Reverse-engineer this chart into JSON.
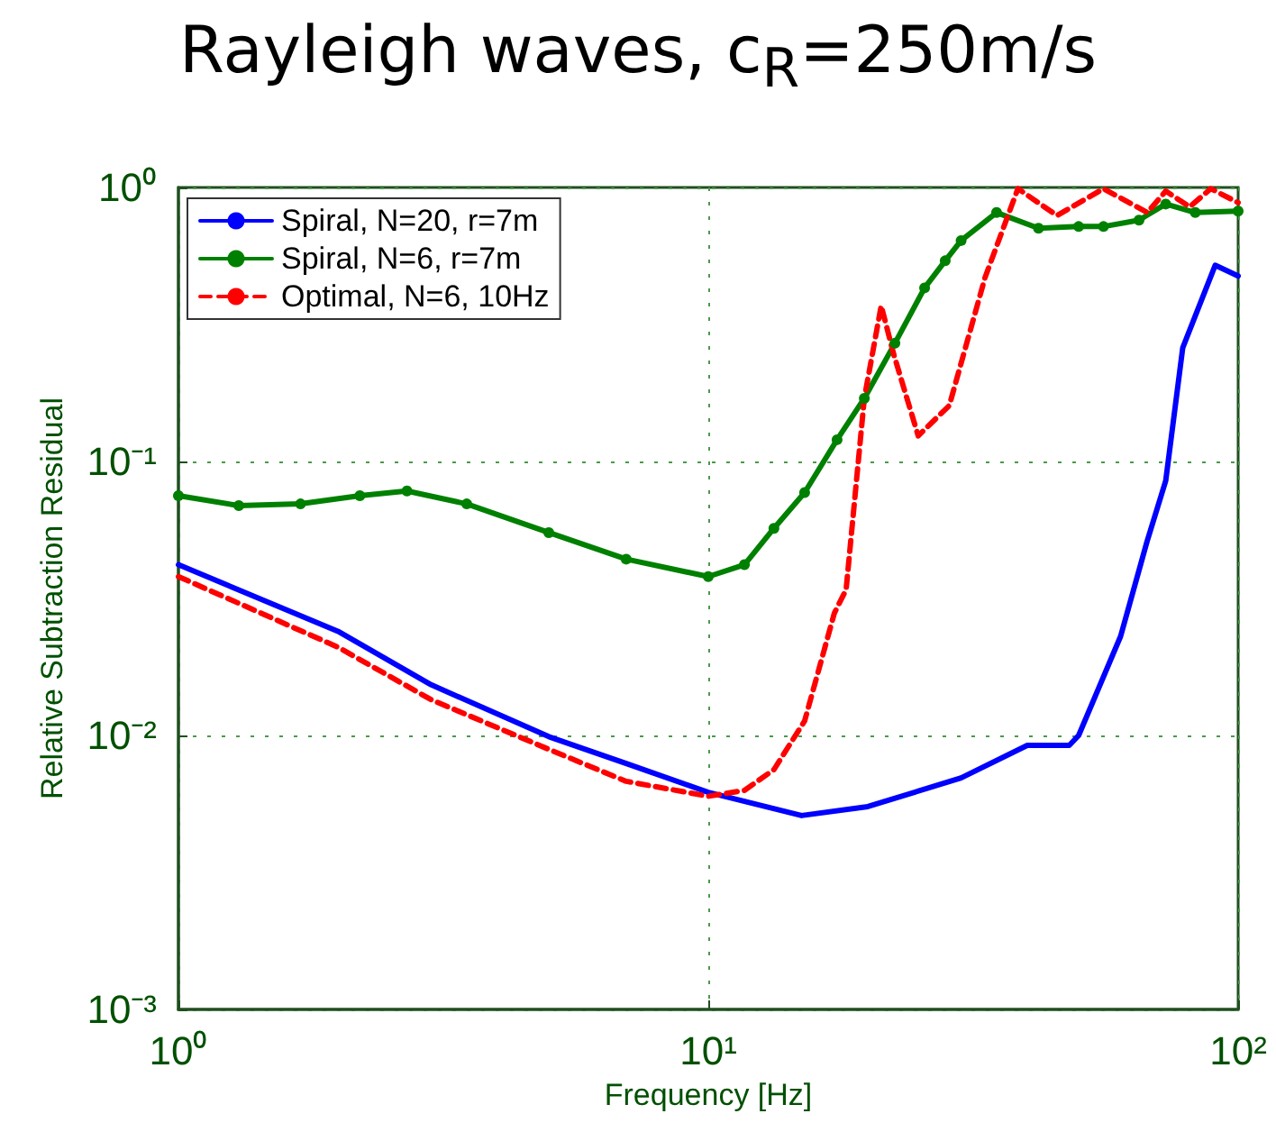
{
  "chart_data": {
    "type": "line",
    "title": "Rayleigh waves, c$_{R}$=250m/s",
    "xlabel": "Frequency [Hz]",
    "ylabel": "Relative Subtraction Residual",
    "log": "xy",
    "grid": true,
    "legend": "top left",
    "xlim": [
      1,
      100
    ],
    "ylim": [
      0.001,
      1
    ],
    "xticks": [
      {
        "value": 1,
        "label": "10⁰"
      },
      {
        "value": 10,
        "label": "10¹"
      },
      {
        "value": 100,
        "label": "10²"
      }
    ],
    "yticks": [
      {
        "value": 0.001,
        "label": "10⁻³"
      },
      {
        "value": 0.01,
        "label": "10⁻²"
      },
      {
        "value": 0.1,
        "label": "10⁻¹"
      },
      {
        "value": 1,
        "label": "10⁰"
      }
    ],
    "series": [
      {
        "name": "Spiral, N=20, r=7m",
        "color": "#0000ff",
        "marker": "none",
        "line_style": "solid",
        "x": [
          1,
          2,
          3,
          5,
          7,
          10,
          15,
          20,
          30,
          40,
          48,
          50,
          60,
          67.3,
          73,
          78.6,
          90.5,
          100
        ],
        "values": [
          0.042,
          0.024,
          0.0153,
          0.0099,
          0.0079,
          0.0062,
          0.0051,
          0.0055,
          0.007,
          0.0092,
          0.0092,
          0.01,
          0.023,
          0.051,
          0.085,
          0.26,
          0.52,
          0.475
        ]
      },
      {
        "name": "Spiral, N=6, r=7m",
        "color": "#008000",
        "marker": "circle",
        "line_style": "solid",
        "x": [
          1,
          1.3,
          1.7,
          2.2,
          2.7,
          3.5,
          5,
          7,
          10,
          11.7,
          13.3,
          15.2,
          17.5,
          19.7,
          22.5,
          25.6,
          28,
          30,
          35,
          42,
          50,
          55.7,
          65,
          73,
          83,
          100
        ],
        "values": [
          0.075,
          0.069,
          0.07,
          0.075,
          0.078,
          0.07,
          0.055,
          0.044,
          0.038,
          0.042,
          0.057,
          0.077,
          0.12,
          0.17,
          0.27,
          0.43,
          0.54,
          0.64,
          0.81,
          0.71,
          0.72,
          0.72,
          0.76,
          0.87,
          0.81,
          0.82
        ]
      },
      {
        "name": "Optimal, N=6, 10Hz",
        "color": "#ff0000",
        "marker": "none",
        "line_style": "dashed",
        "x": [
          1,
          2,
          3,
          5,
          7,
          10,
          11.7,
          13.3,
          15.2,
          17.3,
          18.2,
          19.7,
          21.2,
          22.4,
          24.9,
          28.5,
          33.3,
          38.4,
          45.5,
          55.7,
          67.4,
          73,
          81,
          88.8,
          100
        ],
        "values": [
          0.038,
          0.021,
          0.0135,
          0.0089,
          0.0068,
          0.006,
          0.0063,
          0.0075,
          0.0113,
          0.028,
          0.034,
          0.17,
          0.37,
          0.245,
          0.124,
          0.16,
          0.47,
          0.99,
          0.79,
          0.99,
          0.81,
          0.97,
          0.85,
          0.99,
          0.88
        ]
      }
    ]
  }
}
